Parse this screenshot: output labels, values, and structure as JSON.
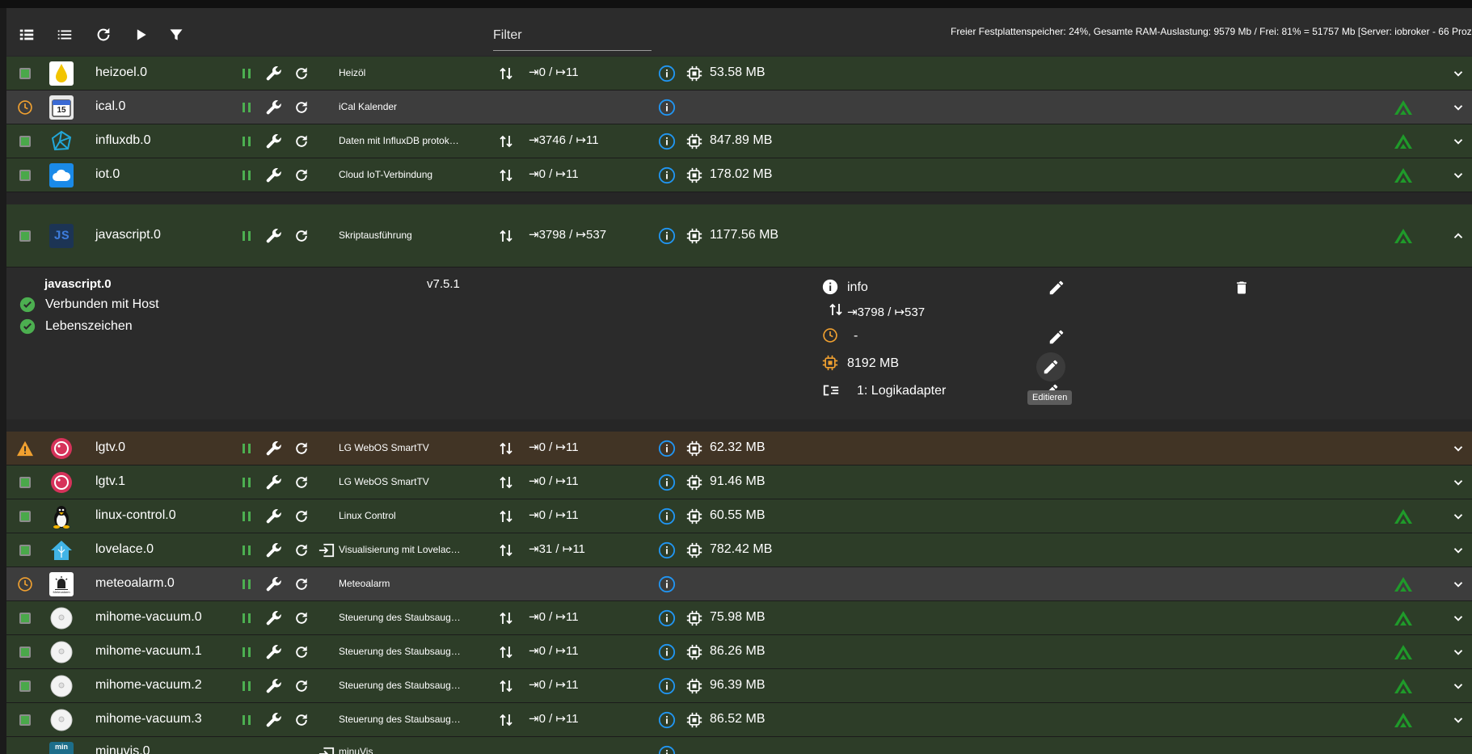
{
  "toolbar": {
    "filter_placeholder": "Filter",
    "status": "Freier Festplattenspeicher: 24%, Gesamte RAM-Auslastung: 9579 Mb / Frei: 81% = 51757 Mb [Server: iobroker - 66 Prozesse]"
  },
  "colors": {
    "ok_green": "#4caf50",
    "info_blue": "#2196f3",
    "warn_orange": "#f0a030",
    "row_green": "#2d3d28",
    "row_gray": "#3d3d3d",
    "row_warn": "#413425"
  },
  "adapters": [
    {
      "name": "heizoel.0",
      "title": "Heizöl",
      "events": "⇥0 / ↦11",
      "memory": "53.58 MB"
    },
    {
      "name": "ical.0",
      "title": "iCal Kalender",
      "events": "",
      "memory": ""
    },
    {
      "name": "influxdb.0",
      "title": "Daten mit InfluxDB protok…",
      "events": "⇥3746 / ↦11",
      "memory": "847.89 MB"
    },
    {
      "name": "iot.0",
      "title": "Cloud IoT-Verbindung",
      "events": "⇥0 / ↦11",
      "memory": "178.02 MB"
    },
    {
      "name": "javascript.0",
      "title": "Skriptausführung",
      "events": "⇥3798 / ↦537",
      "memory": "1177.56 MB"
    },
    {
      "name": "lgtv.0",
      "title": "LG WebOS SmartTV",
      "events": "⇥0 / ↦11",
      "memory": "62.32 MB"
    },
    {
      "name": "lgtv.1",
      "title": "LG WebOS SmartTV",
      "events": "⇥0 / ↦11",
      "memory": "91.46 MB"
    },
    {
      "name": "linux-control.0",
      "title": "Linux Control",
      "events": "⇥0 / ↦11",
      "memory": "60.55 MB"
    },
    {
      "name": "lovelace.0",
      "title": "Visualisierung mit Lovelac…",
      "events": "⇥31 / ↦11",
      "memory": "782.42 MB"
    },
    {
      "name": "meteoalarm.0",
      "title": "Meteoalarm",
      "events": "",
      "memory": ""
    },
    {
      "name": "mihome-vacuum.0",
      "title": "Steuerung des Staubsaug…",
      "events": "⇥0 / ↦11",
      "memory": "75.98 MB"
    },
    {
      "name": "mihome-vacuum.1",
      "title": "Steuerung des Staubsaug…",
      "events": "⇥0 / ↦11",
      "memory": "86.26 MB"
    },
    {
      "name": "mihome-vacuum.2",
      "title": "Steuerung des Staubsaug…",
      "events": "⇥0 / ↦11",
      "memory": "96.39 MB"
    },
    {
      "name": "mihome-vacuum.3",
      "title": "Steuerung des Staubsaug…",
      "events": "⇥0 / ↦11",
      "memory": "86.52 MB"
    },
    {
      "name": "minuvis.0",
      "title": "minuVis",
      "events": "",
      "memory": ""
    }
  ],
  "icon_text": {
    "ical": "15",
    "meteo": "Meteoalarm",
    "js": "JS",
    "minuvis": "min"
  },
  "detail": {
    "name": "javascript.0",
    "version": "v7.5.1",
    "connected": "Verbunden mit Host",
    "alive": "Lebenszeichen",
    "info": "info",
    "events": "⇥3798 / ↦537",
    "schedule": "-",
    "memory_limit": "8192 MB",
    "tier": "1: Logikadapter",
    "tooltip": "Editieren"
  }
}
